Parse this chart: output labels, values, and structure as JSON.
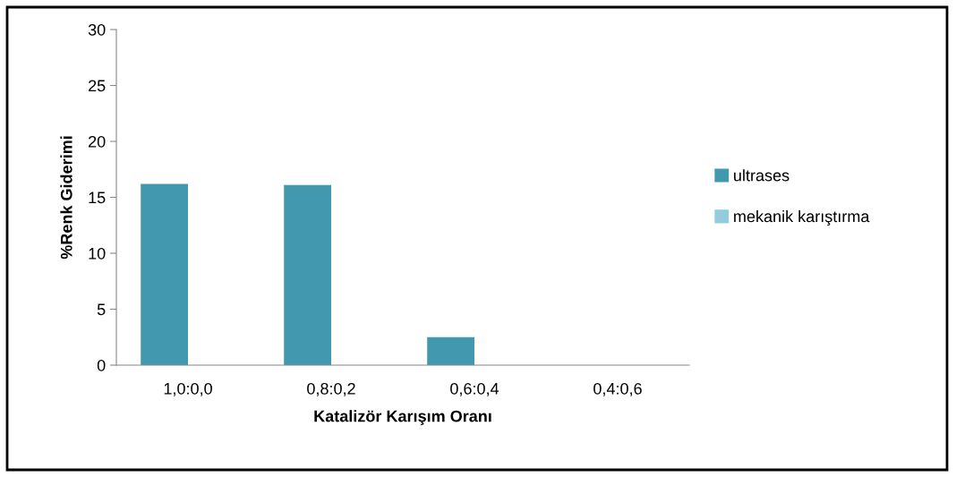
{
  "chart_data": {
    "type": "bar",
    "xlabel": "Katalizör Karışım Oranı",
    "ylabel": "%Renk Giderimi",
    "categories": [
      "1,0:0,0",
      "0,8:0,2",
      "0,6:0,4",
      "0,4:0,6"
    ],
    "series": [
      {
        "name": "ultrases",
        "color": "#4198af",
        "values": [
          16.2,
          16.1,
          2.5,
          0
        ]
      },
      {
        "name": "mekanik karıştırma",
        "color": "#93cddd",
        "values": [
          0,
          0,
          0,
          0
        ]
      }
    ],
    "ylim": [
      0,
      30
    ],
    "yticks": [
      0,
      5,
      10,
      15,
      20,
      25,
      30
    ],
    "grid": false,
    "legend": "right"
  }
}
